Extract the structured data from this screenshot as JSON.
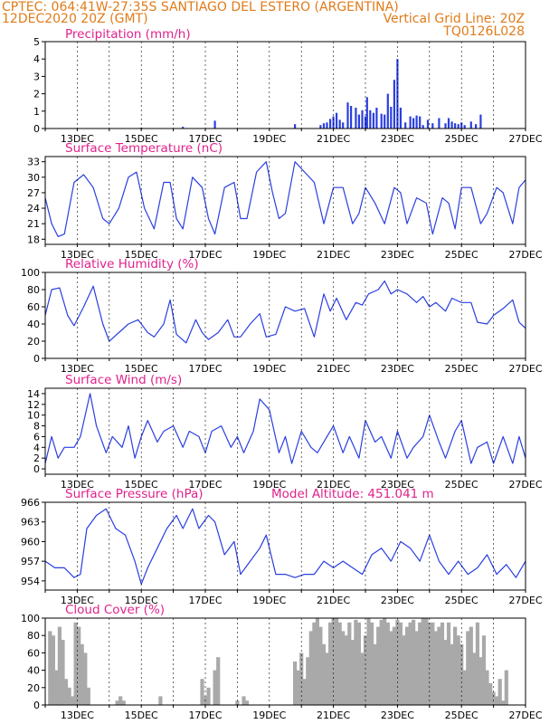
{
  "header": {
    "line1_left": "CPTEC:   064:41W-27:35S  SANTIAGO DEL ESTERO (ARGENTINA)",
    "line2_left": "12DEC2020 20Z (GMT)",
    "line2_right": "Vertical Grid Line: 20Z",
    "line3_right": "TQ0126L028"
  },
  "colors": {
    "header": "#e07b1a",
    "title": "#e0228c",
    "line": "#2a3fe0",
    "cloud": "#a9a9a9",
    "grid": "#000000"
  },
  "chart_data": [
    {
      "type": "bar",
      "title": "Precipitation (mm/h)",
      "xlabel": "",
      "ylabel": "",
      "xlim": [
        12.0,
        27.0
      ],
      "ylim": [
        0,
        5
      ],
      "yticks": [
        0,
        1,
        2,
        3,
        4,
        5
      ],
      "xtick_labels": [
        "13DEC",
        "15DEC",
        "17DEC",
        "19DEC",
        "21DEC",
        "23DEC",
        "25DEC",
        "27DEC"
      ],
      "grid": true,
      "x": [
        15.0,
        16.3,
        17.3,
        19.8,
        20.6,
        20.7,
        20.8,
        20.9,
        21.0,
        21.1,
        21.2,
        21.3,
        21.45,
        21.55,
        21.7,
        21.8,
        21.9,
        22.0,
        22.05,
        22.15,
        22.25,
        22.35,
        22.5,
        22.6,
        22.7,
        22.8,
        22.9,
        23.0,
        23.1,
        23.25,
        23.4,
        23.5,
        23.6,
        23.7,
        23.8,
        23.95,
        24.1,
        24.3,
        24.5,
        24.6,
        24.7,
        24.8,
        24.9,
        25.0,
        25.1,
        25.3,
        25.45,
        25.6
      ],
      "values": [
        0.05,
        0.1,
        0.45,
        0.25,
        0.2,
        0.3,
        0.35,
        0.55,
        0.7,
        0.9,
        0.5,
        0.35,
        1.5,
        1.3,
        1.2,
        0.8,
        1.05,
        0.7,
        1.8,
        1.05,
        0.9,
        1.2,
        0.85,
        0.8,
        2.0,
        1.25,
        2.8,
        4.0,
        1.2,
        0.35,
        0.7,
        0.6,
        0.75,
        0.7,
        0.2,
        0.5,
        0.3,
        0.6,
        0.3,
        0.6,
        0.4,
        0.3,
        0.25,
        0.35,
        0.2,
        0.4,
        0.25,
        0.8
      ]
    },
    {
      "type": "line",
      "title": "Surface Temperature (nC)",
      "xlabel": "",
      "ylabel": "",
      "xlim": [
        12.0,
        27.0
      ],
      "ylim": [
        17,
        34
      ],
      "yticks": [
        18,
        21,
        24,
        27,
        30,
        33
      ],
      "xtick_labels": [
        "13DEC",
        "15DEC",
        "17DEC",
        "19DEC",
        "21DEC",
        "23DEC",
        "25DEC",
        "27DEC"
      ],
      "grid": true,
      "x": [
        12.0,
        12.2,
        12.4,
        12.6,
        12.9,
        13.2,
        13.5,
        13.8,
        14.0,
        14.3,
        14.6,
        14.85,
        15.1,
        15.4,
        15.7,
        15.9,
        16.1,
        16.3,
        16.6,
        16.9,
        17.1,
        17.3,
        17.6,
        17.9,
        18.1,
        18.3,
        18.6,
        18.9,
        19.1,
        19.3,
        19.5,
        19.8,
        20.1,
        20.4,
        20.7,
        21.0,
        21.3,
        21.6,
        21.8,
        22.0,
        22.3,
        22.6,
        22.9,
        23.1,
        23.3,
        23.6,
        23.9,
        24.1,
        24.4,
        24.6,
        24.8,
        25.0,
        25.3,
        25.6,
        25.8,
        26.1,
        26.3,
        26.6,
        26.8,
        27.0
      ],
      "values": [
        26,
        21,
        18.5,
        19,
        29,
        30.5,
        28,
        22,
        21,
        24,
        30,
        31,
        24,
        20,
        29,
        29,
        22,
        20,
        30,
        28,
        22,
        19,
        28,
        29,
        22,
        22,
        31,
        33,
        27,
        22,
        23,
        33,
        31,
        29,
        21,
        28,
        28,
        21,
        23,
        28,
        25,
        21,
        28,
        27,
        21,
        26,
        25,
        19,
        26,
        25,
        20,
        28,
        28,
        21,
        23,
        28,
        27,
        21,
        28,
        29.5
      ]
    },
    {
      "type": "line",
      "title": "Relative Humidity (%)",
      "xlabel": "",
      "ylabel": "",
      "xlim": [
        12.0,
        27.0
      ],
      "ylim": [
        0,
        100
      ],
      "yticks": [
        0,
        20,
        40,
        60,
        80,
        100
      ],
      "xtick_labels": [
        "13DEC",
        "15DEC",
        "17DEC",
        "19DEC",
        "21DEC",
        "23DEC",
        "25DEC",
        "27DEC"
      ],
      "grid": true,
      "x": [
        12.0,
        12.2,
        12.45,
        12.7,
        12.9,
        13.2,
        13.5,
        13.8,
        14.0,
        14.3,
        14.6,
        14.9,
        15.2,
        15.4,
        15.7,
        15.9,
        16.1,
        16.4,
        16.7,
        16.9,
        17.1,
        17.4,
        17.7,
        17.9,
        18.1,
        18.4,
        18.7,
        18.9,
        19.2,
        19.5,
        19.8,
        20.1,
        20.4,
        20.7,
        20.9,
        21.1,
        21.4,
        21.7,
        21.9,
        22.1,
        22.4,
        22.6,
        22.8,
        23.0,
        23.3,
        23.6,
        23.8,
        24.0,
        24.2,
        24.5,
        24.7,
        25.0,
        25.3,
        25.5,
        25.8,
        26.0,
        26.3,
        26.6,
        26.8,
        27.0
      ],
      "values": [
        50,
        80,
        82,
        50,
        38,
        60,
        84,
        40,
        20,
        30,
        40,
        45,
        30,
        25,
        40,
        68,
        28,
        18,
        45,
        30,
        22,
        30,
        45,
        25,
        25,
        40,
        52,
        25,
        28,
        60,
        55,
        58,
        25,
        75,
        55,
        70,
        45,
        65,
        62,
        75,
        80,
        90,
        75,
        80,
        75,
        65,
        72,
        60,
        65,
        55,
        70,
        65,
        65,
        42,
        40,
        50,
        58,
        68,
        42,
        35
      ]
    },
    {
      "type": "line",
      "title": "Surface Wind (m/s)",
      "xlabel": "",
      "ylabel": "",
      "xlim": [
        12.0,
        27.0
      ],
      "ylim": [
        -1,
        15
      ],
      "yticks": [
        0,
        2,
        4,
        6,
        8,
        10,
        12,
        14
      ],
      "xtick_labels": [
        "13DEC",
        "15DEC",
        "17DEC",
        "19DEC",
        "21DEC",
        "23DEC",
        "25DEC",
        "27DEC"
      ],
      "grid": true,
      "x": [
        12.0,
        12.2,
        12.4,
        12.6,
        12.9,
        13.1,
        13.4,
        13.6,
        13.9,
        14.1,
        14.4,
        14.6,
        14.8,
        15.0,
        15.2,
        15.5,
        15.7,
        16.0,
        16.3,
        16.5,
        16.8,
        17.0,
        17.2,
        17.5,
        17.8,
        18.0,
        18.2,
        18.5,
        18.7,
        19.0,
        19.3,
        19.5,
        19.7,
        20.0,
        20.3,
        20.5,
        20.8,
        21.0,
        21.3,
        21.5,
        21.8,
        22.0,
        22.3,
        22.5,
        22.8,
        23.0,
        23.3,
        23.5,
        23.8,
        24.0,
        24.3,
        24.5,
        24.8,
        25.0,
        25.3,
        25.5,
        25.8,
        26.0,
        26.3,
        26.6,
        26.8,
        27.0
      ],
      "values": [
        1,
        6,
        2,
        4,
        4,
        6,
        14,
        8,
        3,
        6,
        4,
        8,
        2,
        6,
        9,
        5,
        7,
        8,
        4,
        7,
        6,
        3,
        7,
        8,
        4,
        6,
        3,
        7,
        13,
        11,
        3,
        6,
        1,
        7,
        4,
        3,
        6,
        8,
        3,
        6,
        2,
        9,
        5,
        6,
        2,
        7,
        2,
        4,
        6,
        10,
        5,
        2,
        7,
        9,
        1,
        4,
        5,
        1,
        6,
        1,
        6,
        2
      ]
    },
    {
      "type": "line",
      "title": "Surface Pressure (hPa)",
      "annotation": "Model Altitude: 451.041 m",
      "xlabel": "",
      "ylabel": "",
      "xlim": [
        12.0,
        27.0
      ],
      "ylim": [
        952.6,
        966
      ],
      "yticks": [
        954,
        957,
        960,
        963,
        966
      ],
      "xtick_labels": [
        "13DEC",
        "15DEC",
        "17DEC",
        "19DEC",
        "21DEC",
        "23DEC",
        "25DEC",
        "27DEC"
      ],
      "grid": true,
      "x": [
        12.0,
        12.3,
        12.6,
        12.9,
        13.1,
        13.3,
        13.6,
        13.9,
        14.2,
        14.5,
        14.8,
        15.0,
        15.2,
        15.5,
        15.8,
        16.1,
        16.3,
        16.6,
        16.8,
        17.1,
        17.3,
        17.6,
        17.9,
        18.1,
        18.4,
        18.7,
        18.9,
        19.2,
        19.5,
        19.8,
        20.1,
        20.4,
        20.7,
        21.0,
        21.3,
        21.6,
        21.9,
        22.2,
        22.5,
        22.8,
        23.1,
        23.4,
        23.7,
        24.0,
        24.3,
        24.6,
        24.9,
        25.2,
        25.5,
        25.8,
        26.1,
        26.4,
        26.7,
        27.0
      ],
      "values": [
        957,
        956,
        956,
        954.5,
        955,
        962,
        964,
        965,
        962,
        961,
        957,
        953.5,
        956,
        959,
        962,
        964,
        962,
        965,
        962,
        964,
        963,
        958,
        960,
        955,
        957,
        959,
        961,
        955,
        955,
        954.5,
        955,
        955,
        957,
        956,
        957,
        956,
        955,
        958,
        959,
        957,
        960,
        959,
        957,
        961,
        957,
        955,
        957,
        955,
        956,
        958,
        955,
        956.5,
        954.5,
        957
      ]
    },
    {
      "type": "bar",
      "title": "Cloud Cover (%)",
      "xlabel": "",
      "ylabel": "",
      "xlim": [
        12.0,
        27.0
      ],
      "ylim": [
        0,
        100
      ],
      "yticks": [
        0,
        20,
        40,
        60,
        80,
        100
      ],
      "xtick_labels": [
        "13DEC",
        "15DEC",
        "17DEC",
        "19DEC",
        "21DEC",
        "23DEC",
        "25DEC",
        "27DEC"
      ],
      "grid": true,
      "x": [
        12.15,
        12.25,
        12.35,
        12.45,
        12.55,
        12.65,
        12.75,
        12.85,
        12.95,
        13.05,
        13.15,
        13.25,
        13.35,
        14.25,
        14.35,
        14.45,
        15.6,
        16.9,
        17.0,
        17.1,
        17.3,
        17.4,
        18.0,
        18.2,
        18.3,
        19.8,
        19.9,
        20.0,
        20.1,
        20.2,
        20.3,
        20.4,
        20.5,
        20.6,
        20.7,
        20.8,
        20.9,
        21.0,
        21.1,
        21.2,
        21.3,
        21.4,
        21.5,
        21.6,
        21.7,
        21.8,
        21.9,
        22.0,
        22.1,
        22.2,
        22.3,
        22.4,
        22.5,
        22.6,
        22.7,
        22.8,
        22.9,
        23.0,
        23.1,
        23.2,
        23.3,
        23.4,
        23.5,
        23.6,
        23.7,
        23.8,
        23.9,
        24.0,
        24.1,
        24.2,
        24.3,
        24.4,
        24.5,
        24.6,
        24.7,
        24.8,
        24.9,
        25.0,
        25.1,
        25.2,
        25.3,
        25.4,
        25.5,
        25.6,
        25.7,
        25.8,
        25.9,
        26.0,
        26.1,
        26.2,
        26.3,
        26.4
      ],
      "values": [
        85,
        80,
        40,
        90,
        75,
        30,
        20,
        10,
        95,
        90,
        70,
        60,
        20,
        5,
        10,
        5,
        10,
        30,
        10,
        20,
        40,
        55,
        5,
        10,
        5,
        50,
        40,
        60,
        30,
        55,
        85,
        95,
        100,
        90,
        70,
        60,
        95,
        100,
        100,
        95,
        85,
        80,
        95,
        75,
        98,
        95,
        60,
        80,
        100,
        95,
        70,
        90,
        98,
        100,
        95,
        85,
        90,
        98,
        95,
        80,
        90,
        95,
        98,
        85,
        95,
        100,
        100,
        95,
        95,
        85,
        90,
        95,
        75,
        95,
        70,
        90,
        80,
        70,
        40,
        85,
        90,
        60,
        95,
        55,
        80,
        40,
        25,
        15,
        10,
        30,
        5,
        40
      ]
    }
  ]
}
